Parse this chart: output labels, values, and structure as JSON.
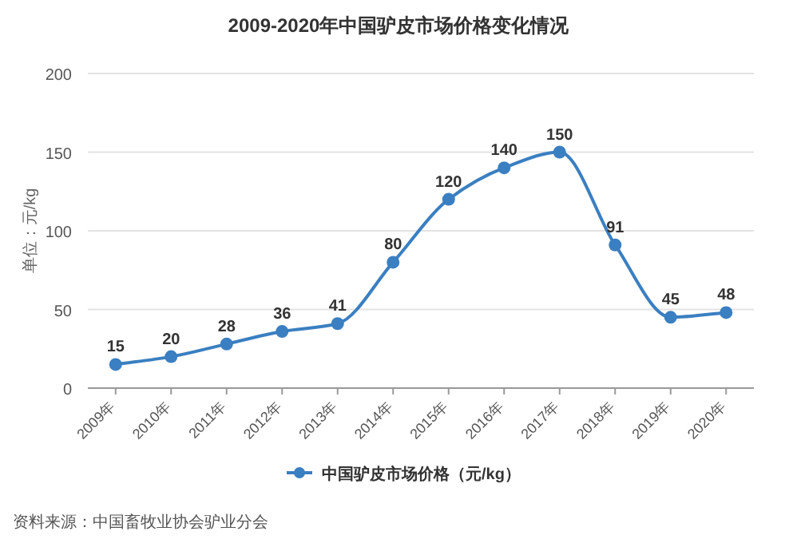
{
  "chart_data": {
    "type": "line",
    "title": "2009-2020年中国驴皮市场价格变化情况",
    "ylabel": "单位：元/kg",
    "categories": [
      "2009年",
      "2010年",
      "2011年",
      "2012年",
      "2013年",
      "2014年",
      "2015年",
      "2016年",
      "2017年",
      "2018年",
      "2019年",
      "2020年"
    ],
    "series": [
      {
        "name": "中国驴皮市场价格（元/kg）",
        "color": "#3a7fc1",
        "values": [
          15,
          20,
          28,
          36,
          41,
          80,
          120,
          140,
          150,
          91,
          45,
          48
        ]
      }
    ],
    "ylim": [
      0,
      200
    ],
    "yticks": [
      0,
      50,
      100,
      150,
      200
    ],
    "grid": "y",
    "legend": "bottom",
    "marker": "circle",
    "data_labels": true,
    "annotations": [
      "资料来源：中国畜牧业协会驴业分会"
    ]
  }
}
